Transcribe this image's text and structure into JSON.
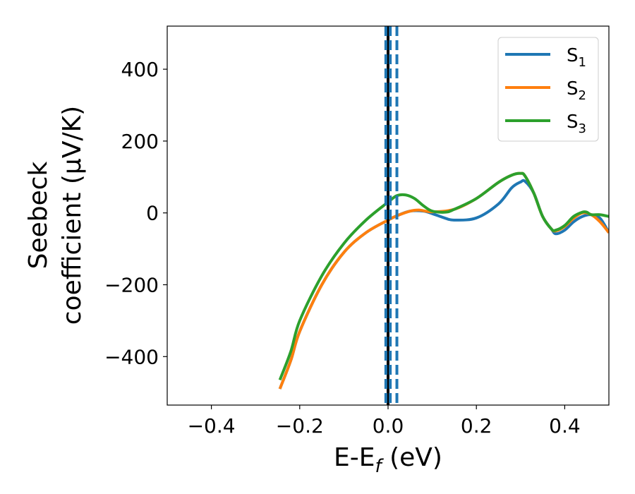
{
  "chart_data": {
    "type": "line",
    "title": "",
    "xlabel": "E-E",
    "xlabel_sub": "f",
    "xlabel_unit": " (eV)",
    "ylabel_line1": "Seebeck",
    "ylabel_line2": "coefficient  (μV/K)",
    "xlim": [
      -0.5,
      0.5
    ],
    "ylim": [
      -535,
      520
    ],
    "xticks": [
      -0.4,
      -0.2,
      0.0,
      0.2,
      0.4
    ],
    "xtick_labels": [
      "−0.4",
      "−0.2",
      "0.0",
      "0.2",
      "0.4"
    ],
    "yticks": [
      -400,
      -200,
      0,
      200,
      400
    ],
    "ytick_labels": [
      "−400",
      "−200",
      "0",
      "200",
      "400"
    ],
    "grid": false,
    "legend_position": "top-right",
    "series": [
      {
        "name": "S",
        "sub": "1",
        "color": "#1f77b4",
        "x": [
          -0.245,
          -0.22,
          -0.2,
          -0.15,
          -0.1,
          -0.05,
          0.0,
          0.02,
          0.05,
          0.08,
          0.1,
          0.13,
          0.15,
          0.2,
          0.25,
          0.28,
          0.3,
          0.31,
          0.33,
          0.35,
          0.37,
          0.38,
          0.4,
          0.42,
          0.44,
          0.46,
          0.48,
          0.5
        ],
        "y": [
          -490,
          -410,
          -330,
          -200,
          -110,
          -55,
          -20,
          -8,
          5,
          5,
          -2,
          -15,
          -20,
          -14,
          25,
          70,
          86,
          88,
          55,
          -10,
          -45,
          -58,
          -48,
          -25,
          -10,
          -5,
          -15,
          -55
        ]
      },
      {
        "name": "S",
        "sub": "2",
        "color": "#ff7f0e",
        "x": [
          -0.245,
          -0.22,
          -0.2,
          -0.15,
          -0.1,
          -0.05,
          0.0,
          0.02,
          0.05,
          0.07,
          0.1,
          0.15,
          0.2,
          0.25,
          0.28,
          0.3,
          0.31,
          0.33,
          0.35,
          0.37,
          0.38,
          0.4,
          0.42,
          0.44,
          0.46,
          0.48,
          0.5
        ],
        "y": [
          -490,
          -410,
          -330,
          -200,
          -110,
          -55,
          -20,
          -8,
          5,
          8,
          3,
          10,
          40,
          85,
          105,
          110,
          103,
          55,
          -10,
          -45,
          -50,
          -38,
          -15,
          0,
          -5,
          -25,
          -55
        ]
      },
      {
        "name": "S",
        "sub": "3",
        "color": "#2ca02c",
        "x": [
          -0.245,
          -0.22,
          -0.2,
          -0.15,
          -0.1,
          -0.05,
          0.0,
          0.02,
          0.04,
          0.06,
          0.08,
          0.1,
          0.13,
          0.15,
          0.2,
          0.25,
          0.28,
          0.3,
          0.31,
          0.33,
          0.35,
          0.37,
          0.38,
          0.4,
          0.42,
          0.44,
          0.45,
          0.46,
          0.48,
          0.5
        ],
        "y": [
          -465,
          -385,
          -300,
          -175,
          -85,
          -20,
          30,
          48,
          50,
          40,
          20,
          5,
          2,
          10,
          40,
          85,
          105,
          110,
          103,
          55,
          -10,
          -45,
          -48,
          -35,
          -10,
          2,
          2,
          -5,
          -5,
          -10
        ]
      }
    ],
    "vlines": [
      {
        "x": 0.0,
        "color": "#000000",
        "style": "solid"
      },
      {
        "x": -0.005,
        "color": "#1f77b4",
        "style": "dashed"
      },
      {
        "x": 0.005,
        "color": "#1f77b4",
        "style": "dashed"
      },
      {
        "x": 0.02,
        "color": "#1f77b4",
        "style": "dashed"
      }
    ]
  }
}
